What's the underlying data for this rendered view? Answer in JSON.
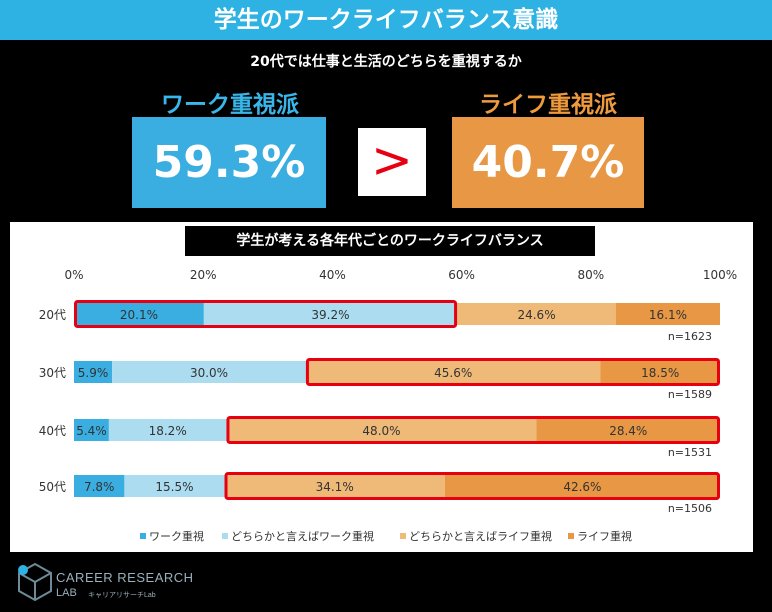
{
  "header": {
    "title": "学生のワークライフバランス意識",
    "subtitle": "20代では仕事と生活のどちらを重視するか"
  },
  "summary": {
    "left_label": "ワーク重視派",
    "left_value": "59.3%",
    "operator": ">",
    "right_label": "ライフ重視派",
    "right_value": "40.7%"
  },
  "colors": {
    "work": "#3aaee0",
    "lean_work": "#abdcef",
    "lean_life": "#efb978",
    "life": "#e89745",
    "highlight": "#e60012",
    "header_bg": "#2db2e3",
    "left_label": "#3ab7ea",
    "right_label": "#ef9a3c"
  },
  "logo": {
    "line1": "CAREER RESEARCH",
    "line2": "LAB",
    "line3": "キャリアリサーチLab"
  },
  "chart_data": {
    "type": "bar",
    "orientation": "horizontal-stacked-100",
    "title": "学生が考える各年代ごとのワークライフバランス",
    "categories": [
      "20代",
      "30代",
      "40代",
      "50代"
    ],
    "n_labels": [
      "n=1623",
      "n=1589",
      "n=1531",
      "n=1506"
    ],
    "series": [
      {
        "name": "ワーク重視",
        "values": [
          20.1,
          5.9,
          5.4,
          7.8
        ]
      },
      {
        "name": "どちらかと言えばワーク重視",
        "values": [
          39.2,
          30.0,
          18.2,
          15.5
        ]
      },
      {
        "name": "どちらかと言えばライフ重視",
        "values": [
          24.6,
          45.6,
          48.0,
          34.1
        ]
      },
      {
        "name": "ライフ重視",
        "values": [
          16.1,
          18.5,
          28.4,
          42.6
        ]
      }
    ],
    "value_labels": [
      [
        "20.1%",
        "39.2%",
        "24.6%",
        "16.1%"
      ],
      [
        "5.9%",
        "30.0%",
        "45.6%",
        "18.5%"
      ],
      [
        "5.4%",
        "18.2%",
        "48.0%",
        "28.4%"
      ],
      [
        "7.8%",
        "15.5%",
        "34.1%",
        "42.6%"
      ]
    ],
    "xticks": [
      "0%",
      "20%",
      "40%",
      "60%",
      "80%",
      "100%"
    ],
    "xlim": [
      0,
      100
    ],
    "highlight": [
      {
        "row": 0,
        "from_series": 0,
        "to_series": 1
      },
      {
        "row": 1,
        "from_series": 2,
        "to_series": 3
      },
      {
        "row": 2,
        "from_series": 2,
        "to_series": 3
      },
      {
        "row": 3,
        "from_series": 2,
        "to_series": 3
      }
    ],
    "legend_position": "bottom",
    "grid": false
  }
}
